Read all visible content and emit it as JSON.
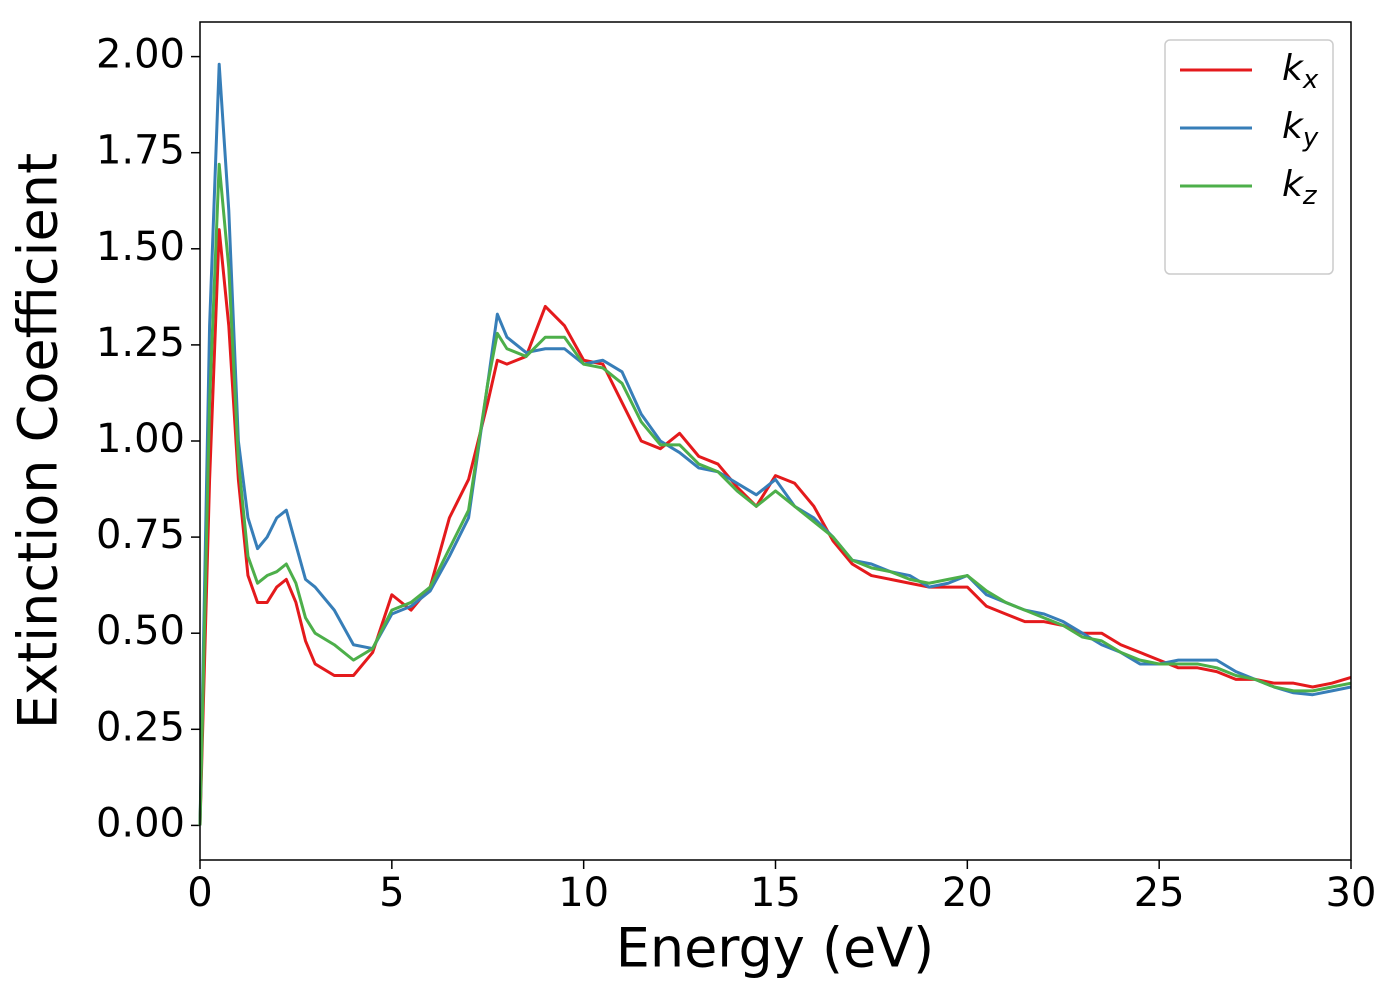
{
  "chart_data": {
    "type": "line",
    "xlabel": "Energy (eV)",
    "ylabel": "Extinction Coefficient",
    "x": [
      0,
      0.25,
      0.5,
      0.75,
      1,
      1.25,
      1.5,
      1.75,
      2,
      2.25,
      2.5,
      2.75,
      3,
      3.5,
      4,
      4.5,
      5,
      5.5,
      6,
      6.5,
      7,
      7.5,
      7.75,
      8,
      8.5,
      9,
      9.5,
      10,
      10.5,
      11,
      11.5,
      12,
      12.5,
      13,
      13.5,
      14,
      14.5,
      15,
      15.5,
      16,
      16.5,
      17,
      17.5,
      18,
      18.5,
      19,
      19.5,
      20,
      20.5,
      21,
      21.5,
      22,
      22.5,
      23,
      23.5,
      24,
      24.5,
      25,
      25.5,
      26,
      26.5,
      27,
      27.5,
      28,
      28.5,
      29,
      29.5,
      30
    ],
    "series": [
      {
        "name": "kx",
        "color": "#e41a1c",
        "values": [
          0,
          0.9,
          1.55,
          1.3,
          0.9,
          0.65,
          0.58,
          0.58,
          0.62,
          0.64,
          0.58,
          0.48,
          0.42,
          0.39,
          0.39,
          0.45,
          0.6,
          0.56,
          0.62,
          0.8,
          0.9,
          1.1,
          1.21,
          1.2,
          1.22,
          1.35,
          1.3,
          1.21,
          1.2,
          1.1,
          1.0,
          0.98,
          1.02,
          0.96,
          0.94,
          0.88,
          0.83,
          0.91,
          0.89,
          0.83,
          0.74,
          0.68,
          0.65,
          0.64,
          0.63,
          0.62,
          0.62,
          0.62,
          0.57,
          0.55,
          0.53,
          0.53,
          0.52,
          0.5,
          0.5,
          0.47,
          0.45,
          0.43,
          0.41,
          0.41,
          0.4,
          0.38,
          0.38,
          0.37,
          0.37,
          0.36,
          0.37,
          0.385
        ]
      },
      {
        "name": "ky",
        "color": "#377eb8",
        "values": [
          0,
          1.3,
          1.98,
          1.6,
          1.0,
          0.8,
          0.72,
          0.75,
          0.8,
          0.82,
          0.73,
          0.64,
          0.62,
          0.56,
          0.47,
          0.46,
          0.55,
          0.57,
          0.61,
          0.7,
          0.8,
          1.15,
          1.33,
          1.27,
          1.23,
          1.24,
          1.24,
          1.2,
          1.21,
          1.18,
          1.07,
          1.0,
          0.97,
          0.93,
          0.92,
          0.89,
          0.86,
          0.9,
          0.83,
          0.8,
          0.75,
          0.69,
          0.68,
          0.66,
          0.65,
          0.62,
          0.63,
          0.65,
          0.6,
          0.58,
          0.56,
          0.55,
          0.53,
          0.5,
          0.47,
          0.45,
          0.42,
          0.42,
          0.43,
          0.43,
          0.43,
          0.4,
          0.38,
          0.36,
          0.345,
          0.34,
          0.35,
          0.36
        ]
      },
      {
        "name": "kz",
        "color": "#4daf4a",
        "values": [
          0,
          1.1,
          1.72,
          1.45,
          0.95,
          0.7,
          0.63,
          0.65,
          0.66,
          0.68,
          0.63,
          0.54,
          0.5,
          0.47,
          0.43,
          0.46,
          0.56,
          0.58,
          0.62,
          0.72,
          0.82,
          1.15,
          1.28,
          1.24,
          1.22,
          1.27,
          1.27,
          1.2,
          1.19,
          1.15,
          1.05,
          0.99,
          0.99,
          0.94,
          0.92,
          0.87,
          0.83,
          0.87,
          0.83,
          0.79,
          0.75,
          0.69,
          0.67,
          0.66,
          0.64,
          0.63,
          0.64,
          0.65,
          0.61,
          0.58,
          0.56,
          0.54,
          0.52,
          0.49,
          0.48,
          0.45,
          0.43,
          0.42,
          0.42,
          0.42,
          0.41,
          0.39,
          0.38,
          0.36,
          0.35,
          0.35,
          0.36,
          0.37
        ]
      }
    ],
    "xlim": [
      0,
      30
    ],
    "xticks": [
      0,
      5,
      10,
      15,
      20,
      25,
      30
    ],
    "ylim": [
      -0.09,
      2.09
    ],
    "yticks": [
      {
        "value": 0,
        "label": "0.00"
      },
      {
        "value": 0.25,
        "label": "0.25"
      },
      {
        "value": 0.5,
        "label": "0.50"
      },
      {
        "value": 0.75,
        "label": "0.75"
      },
      {
        "value": 1,
        "label": "1.00"
      },
      {
        "value": 1.25,
        "label": "1.25"
      },
      {
        "value": 1.5,
        "label": "1.50"
      },
      {
        "value": 1.75,
        "label": "1.75"
      },
      {
        "value": 2,
        "label": "2.00"
      }
    ],
    "legend": "upper right",
    "grid": false
  }
}
